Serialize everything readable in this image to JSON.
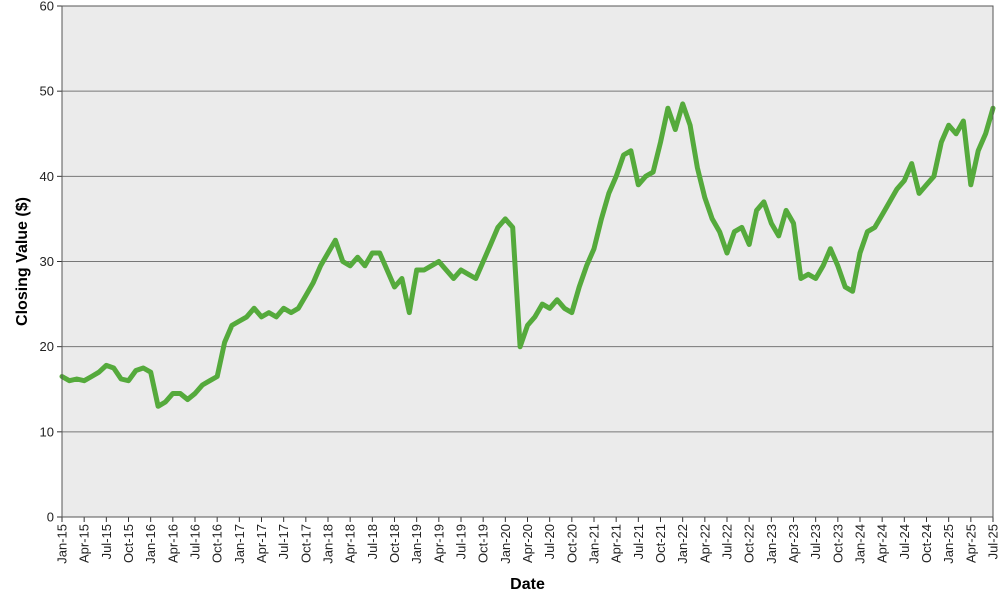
{
  "chart_data": {
    "type": "line",
    "title": "",
    "xlabel": "Date",
    "ylabel": "Closing Value ($)",
    "ylim": [
      0,
      60
    ],
    "yticks": [
      0,
      10,
      20,
      30,
      40,
      50,
      60
    ],
    "grid": true,
    "legend": "none",
    "xlim": [
      "2015-01",
      "2025-07"
    ],
    "x_tick_labels": [
      "Jan-15",
      "Apr-15",
      "Jul-15",
      "Oct-15",
      "Jan-16",
      "Apr-16",
      "Jul-16",
      "Oct-16",
      "Jan-17",
      "Apr-17",
      "Jul-17",
      "Oct-17",
      "Jan-18",
      "Apr-18",
      "Jul-18",
      "Oct-18",
      "Jan-19",
      "Apr-19",
      "Jul-19",
      "Oct-19",
      "Jan-20",
      "Apr-20",
      "Jul-20",
      "Oct-20",
      "Jan-21",
      "Apr-21",
      "Jul-21",
      "Oct-21",
      "Jan-22",
      "Apr-22",
      "Jul-22",
      "Oct-22",
      "Jan-23",
      "Apr-23",
      "Jul-23",
      "Oct-23",
      "Jan-24",
      "Apr-24",
      "Jul-24",
      "Oct-24",
      "Jan-25",
      "Apr-25",
      "Jul-25"
    ],
    "colors": {
      "line": "#55aa3c",
      "plot_bg": "#ebebeb",
      "grid": "#777777",
      "frame": "#555555"
    },
    "series": [
      {
        "x": [
          "2015-01",
          "2015-02",
          "2015-03",
          "2015-04",
          "2015-05",
          "2015-06",
          "2015-07",
          "2015-08",
          "2015-09",
          "2015-10",
          "2015-11",
          "2015-12",
          "2016-01",
          "2016-02",
          "2016-03",
          "2016-04",
          "2016-05",
          "2016-06",
          "2016-07",
          "2016-08",
          "2016-09",
          "2016-10",
          "2016-11",
          "2016-12",
          "2017-01",
          "2017-02",
          "2017-03",
          "2017-04",
          "2017-05",
          "2017-06",
          "2017-07",
          "2017-08",
          "2017-09",
          "2017-10",
          "2017-11",
          "2017-12",
          "2018-01",
          "2018-02",
          "2018-03",
          "2018-04",
          "2018-05",
          "2018-06",
          "2018-07",
          "2018-08",
          "2018-09",
          "2018-10",
          "2018-11",
          "2018-12",
          "2019-01",
          "2019-02",
          "2019-03",
          "2019-04",
          "2019-05",
          "2019-06",
          "2019-07",
          "2019-08",
          "2019-09",
          "2019-10",
          "2019-11",
          "2019-12",
          "2020-01",
          "2020-02",
          "2020-03",
          "2020-04",
          "2020-05",
          "2020-06",
          "2020-07",
          "2020-08",
          "2020-09",
          "2020-10",
          "2020-11",
          "2020-12",
          "2021-01",
          "2021-02",
          "2021-03",
          "2021-04",
          "2021-05",
          "2021-06",
          "2021-07",
          "2021-08",
          "2021-09",
          "2021-10",
          "2021-11",
          "2021-12",
          "2022-01",
          "2022-02",
          "2022-03",
          "2022-04",
          "2022-05",
          "2022-06",
          "2022-07",
          "2022-08",
          "2022-09",
          "2022-10",
          "2022-11",
          "2022-12",
          "2023-01",
          "2023-02",
          "2023-03",
          "2023-04",
          "2023-05",
          "2023-06",
          "2023-07",
          "2023-08",
          "2023-09",
          "2023-10",
          "2023-11",
          "2023-12",
          "2024-01",
          "2024-02",
          "2024-03",
          "2024-04",
          "2024-05",
          "2024-06",
          "2024-07",
          "2024-08",
          "2024-09",
          "2024-10",
          "2024-11",
          "2024-12",
          "2025-01",
          "2025-02",
          "2025-03",
          "2025-04",
          "2025-05",
          "2025-06",
          "2025-07"
        ],
        "values": [
          16.5,
          16.0,
          16.2,
          16.0,
          16.5,
          17.0,
          17.8,
          17.5,
          16.2,
          16.0,
          17.2,
          17.5,
          17.0,
          13.0,
          13.5,
          14.5,
          14.5,
          13.8,
          14.5,
          15.5,
          16.0,
          16.5,
          20.5,
          22.5,
          23.0,
          23.5,
          24.5,
          23.5,
          24.0,
          23.5,
          24.5,
          24.0,
          24.5,
          26.0,
          27.5,
          29.5,
          31.0,
          32.5,
          30.0,
          29.5,
          30.5,
          29.5,
          31.0,
          31.0,
          29.0,
          27.0,
          28.0,
          24.0,
          29.0,
          29.0,
          29.5,
          30.0,
          29.0,
          28.0,
          29.0,
          28.5,
          28.0,
          30.0,
          32.0,
          34.0,
          35.0,
          34.0,
          20.0,
          22.5,
          23.5,
          25.0,
          24.5,
          25.5,
          24.5,
          24.0,
          27.0,
          29.5,
          31.5,
          35.0,
          38.0,
          40.0,
          42.5,
          43.0,
          39.0,
          40.0,
          40.5,
          44.0,
          48.0,
          45.5,
          48.5,
          46.0,
          41.0,
          37.5,
          35.0,
          33.5,
          31.0,
          33.5,
          34.0,
          32.0,
          36.0,
          37.0,
          34.5,
          33.0,
          36.0,
          34.5,
          28.0,
          28.5,
          28.0,
          29.5,
          31.5,
          29.5,
          27.0,
          26.5,
          31.0,
          33.5,
          34.0,
          35.5,
          37.0,
          38.5,
          39.5,
          41.5,
          38.0,
          39.0,
          40.0,
          44.0,
          46.0,
          45.0,
          46.5,
          39.0,
          43.0,
          45.0,
          48.0
        ]
      }
    ]
  }
}
